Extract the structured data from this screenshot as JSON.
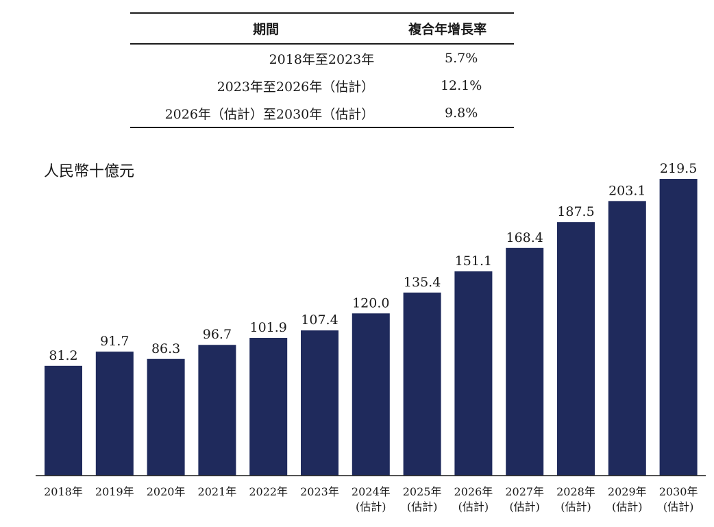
{
  "table": {
    "header": {
      "period": "期間",
      "cagr": "複合年增長率"
    },
    "rows": [
      {
        "period": "2018年至2023年",
        "cagr": "5.7%"
      },
      {
        "period": "2023年至2026年（估計）",
        "cagr": "12.1%"
      },
      {
        "period": "2026年（估計）至2030年（估計）",
        "cagr": "9.8%"
      }
    ]
  },
  "chart_data": {
    "type": "bar",
    "unit_label": "人民幣十億元",
    "categories": [
      [
        "2018年"
      ],
      [
        "2019年"
      ],
      [
        "2020年"
      ],
      [
        "2021年"
      ],
      [
        "2022年"
      ],
      [
        "2023年"
      ],
      [
        "2024年",
        "(估計)"
      ],
      [
        "2025年",
        "(估計)"
      ],
      [
        "2026年",
        "(估計)"
      ],
      [
        "2027年",
        "(估計)"
      ],
      [
        "2028年",
        "(估計)"
      ],
      [
        "2029年",
        "(估計)"
      ],
      [
        "2030年",
        "(估計)"
      ]
    ],
    "values": [
      81.2,
      91.7,
      86.3,
      96.7,
      101.9,
      107.4,
      120.0,
      135.4,
      151.1,
      168.4,
      187.5,
      203.1,
      219.5
    ],
    "value_labels": [
      "81.2",
      "91.7",
      "86.3",
      "96.7",
      "101.9",
      "107.4",
      "120.0",
      "135.4",
      "151.1",
      "168.4",
      "187.5",
      "203.1",
      "219.5"
    ],
    "bar_color": "#1f2a5c",
    "ylim": [
      0,
      219.5
    ],
    "grid": false,
    "legend": "none"
  }
}
